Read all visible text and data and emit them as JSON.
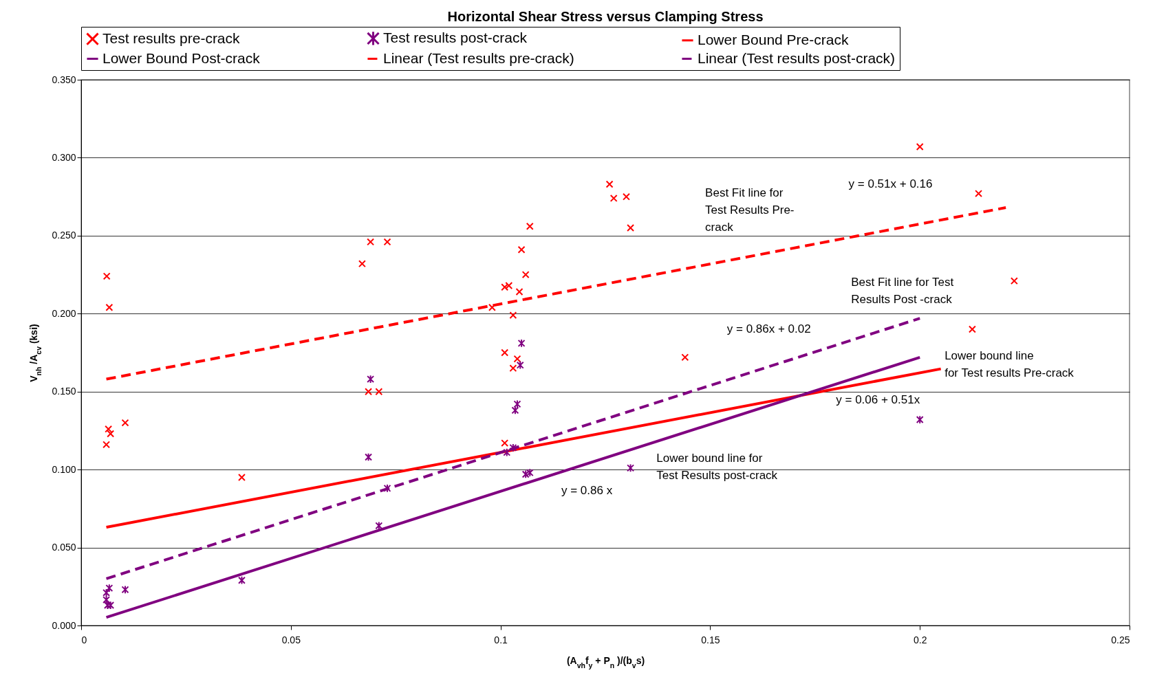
{
  "chart_data": {
    "type": "scatter",
    "title": "Horizontal Shear Stress versus Clamping Stress",
    "xlabel": "(A$_{vh}$f$_{y}$ + P$_{n}$ )/(b$_{v}$s)",
    "ylabel": "V$_{nh}$ /A$_{cv}$ (ksi)",
    "xlim": [
      0,
      0.25
    ],
    "xticks": [
      0,
      0.05,
      0.1,
      0.15,
      0.2,
      0.25
    ],
    "ylim": [
      0,
      0.35
    ],
    "yticks": [
      {
        "value": 0,
        "label": "0.000"
      },
      {
        "value": 0.05,
        "label": "0.050"
      },
      {
        "value": 0.1,
        "label": "0.100"
      },
      {
        "value": 0.15,
        "label": "0.150"
      },
      {
        "value": 0.2,
        "label": "0.200"
      },
      {
        "value": 0.25,
        "label": "0.250"
      },
      {
        "value": 0.3,
        "label": "0.300"
      },
      {
        "value": 0.35,
        "label": "0.350"
      }
    ],
    "grid": "y",
    "legend": "top",
    "series": [
      {
        "name": "Test results pre-crack",
        "color": "#ff0000",
        "x": [
          0.0061,
          0.0067,
          0.0065,
          0.007,
          0.006,
          0.0105,
          0.0383,
          0.067,
          0.069,
          0.073,
          0.0685,
          0.071,
          0.098,
          0.101,
          0.102,
          0.1045,
          0.105,
          0.107,
          0.106,
          0.103,
          0.101,
          0.104,
          0.103,
          0.101,
          0.126,
          0.127,
          0.13,
          0.131,
          0.144,
          0.2,
          0.214,
          0.2225,
          0.2125
        ],
        "values": [
          0.224,
          0.204,
          0.126,
          0.123,
          0.116,
          0.13,
          0.095,
          0.232,
          0.246,
          0.246,
          0.15,
          0.15,
          0.204,
          0.217,
          0.218,
          0.214,
          0.241,
          0.256,
          0.225,
          0.199,
          0.175,
          0.171,
          0.165,
          0.117,
          0.283,
          0.274,
          0.275,
          0.255,
          0.172,
          0.307,
          0.277,
          0.221,
          0.19
        ]
      },
      {
        "name": "Test results post-crack",
        "color": "#800080",
        "x": [
          0.006,
          0.0067,
          0.006,
          0.0063,
          0.007,
          0.0105,
          0.0383,
          0.069,
          0.0685,
          0.071,
          0.073,
          0.105,
          0.1047,
          0.104,
          0.1035,
          0.1015,
          0.103,
          0.106,
          0.107,
          0.131,
          0.2
        ],
        "values": [
          0.021,
          0.024,
          0.0165,
          0.013,
          0.013,
          0.023,
          0.029,
          0.158,
          0.108,
          0.064,
          0.088,
          0.181,
          0.167,
          0.142,
          0.138,
          0.111,
          0.114,
          0.097,
          0.098,
          0.101,
          0.132
        ]
      },
      {
        "name": "Lower Bound Pre-crack",
        "type": "line",
        "line_style": "solid",
        "color": "#ff0000",
        "x": [
          0.006,
          0.205
        ],
        "values": [
          0.063,
          0.1646
        ]
      },
      {
        "name": "Lower Bound Post-crack",
        "type": "line",
        "line_style": "solid",
        "color": "#800080",
        "x": [
          0.006,
          0.2
        ],
        "values": [
          0.0052,
          0.172
        ]
      },
      {
        "name": "Linear (Test results pre-crack)",
        "type": "line",
        "line_style": "dashed",
        "color": "#ff0000",
        "x": [
          0.006,
          0.2205
        ],
        "values": [
          0.158,
          0.268
        ]
      },
      {
        "name": "Linear (Test results post-crack)",
        "type": "line",
        "line_style": "dashed",
        "color": "#800080",
        "x": [
          0.006,
          0.2
        ],
        "values": [
          0.03,
          0.197
        ]
      }
    ],
    "annotations": [
      "Best Fit line for\nTest Results Pre-\ncrack",
      "y = 0.51x + 0.16",
      "Best Fit line for Test\nResults Post -crack",
      "y = 0.86x + 0.02",
      "Lower bound line\nfor Test results Pre-crack",
      "y = 0.06 + 0.51x",
      "Lower bound line for\nTest Results post-crack",
      "y = 0.86 x"
    ]
  }
}
